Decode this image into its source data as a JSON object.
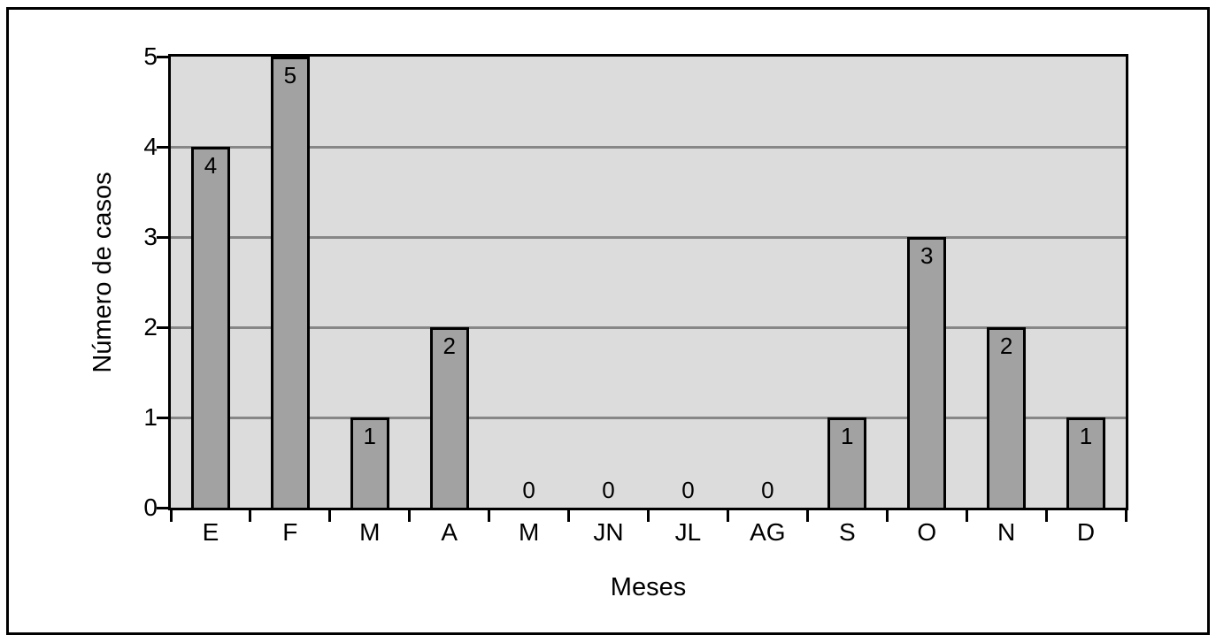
{
  "chart_data": {
    "type": "bar",
    "categories": [
      "E",
      "F",
      "M",
      "A",
      "M",
      "JN",
      "JL",
      "AG",
      "S",
      "O",
      "N",
      "D"
    ],
    "values": [
      4,
      5,
      1,
      2,
      0,
      0,
      0,
      0,
      1,
      3,
      2,
      1
    ],
    "title": "",
    "xlabel": "Meses",
    "ylabel": "Número de casos",
    "ylim": [
      0,
      5
    ],
    "yticks": [
      0,
      1,
      2,
      3,
      4,
      5
    ],
    "grid": true,
    "legend": false,
    "data_labels": true,
    "colors": {
      "bar_fill": "#a2a2a2",
      "bar_border": "#000000",
      "plot_background": "#dcdcdc",
      "gridline": "#878787",
      "axis": "#000000",
      "figure_border": "#000000",
      "page_background": "#ffffff",
      "text": "#000000"
    }
  }
}
